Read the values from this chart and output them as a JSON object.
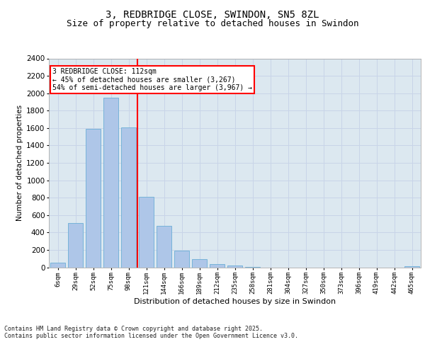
{
  "title1": "3, REDBRIDGE CLOSE, SWINDON, SN5 8ZL",
  "title2": "Size of property relative to detached houses in Swindon",
  "xlabel": "Distribution of detached houses by size in Swindon",
  "ylabel": "Number of detached properties",
  "categories": [
    "6sqm",
    "29sqm",
    "52sqm",
    "75sqm",
    "98sqm",
    "121sqm",
    "144sqm",
    "166sqm",
    "189sqm",
    "212sqm",
    "235sqm",
    "258sqm",
    "281sqm",
    "304sqm",
    "327sqm",
    "350sqm",
    "373sqm",
    "396sqm",
    "419sqm",
    "442sqm",
    "465sqm"
  ],
  "values": [
    50,
    510,
    1590,
    1950,
    1610,
    810,
    480,
    195,
    95,
    35,
    18,
    8,
    0,
    0,
    0,
    0,
    0,
    0,
    0,
    0,
    15
  ],
  "bar_color": "#aec6e8",
  "bar_edge_color": "#6baed6",
  "vline_x": 4.5,
  "vline_color": "red",
  "annotation_text": "3 REDBRIDGE CLOSE: 112sqm\n← 45% of detached houses are smaller (3,267)\n54% of semi-detached houses are larger (3,967) →",
  "annotation_box_color": "red",
  "ylim": [
    0,
    2400
  ],
  "yticks": [
    0,
    200,
    400,
    600,
    800,
    1000,
    1200,
    1400,
    1600,
    1800,
    2000,
    2200,
    2400
  ],
  "grid_color": "#c8d4e8",
  "bg_color": "#dce8f0",
  "footer1": "Contains HM Land Registry data © Crown copyright and database right 2025.",
  "footer2": "Contains public sector information licensed under the Open Government Licence v3.0.",
  "title1_fontsize": 10,
  "title2_fontsize": 9,
  "ann_fontsize": 7,
  "xlabel_fontsize": 8,
  "ylabel_fontsize": 7.5
}
